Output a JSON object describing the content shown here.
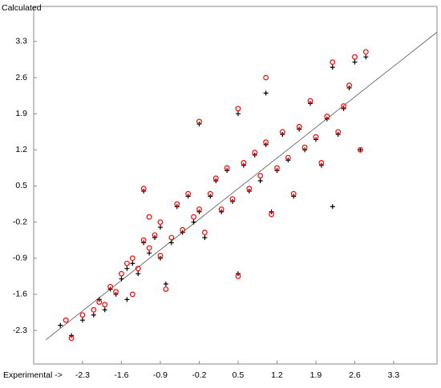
{
  "chart_data": {
    "type": "scatter",
    "y_label": "Calculated",
    "x_label": "Experimental ->",
    "xlim": [
      -3.18,
      4.08
    ],
    "ylim": [
      -2.95,
      3.98
    ],
    "xticks": [
      -2.3,
      -1.6,
      -0.9,
      -0.2,
      0.5,
      1.2,
      1.9,
      2.6,
      3.3
    ],
    "yticks": [
      -2.3,
      -1.6,
      -0.9,
      -0.2,
      0.5,
      1.2,
      1.9,
      2.6,
      3.3
    ],
    "fit_line": {
      "color": "#555555",
      "x": [
        -2.96,
        4.08
      ],
      "y": [
        -2.48,
        3.48
      ]
    },
    "series": [
      {
        "marker": "+",
        "color": "#000000",
        "x": [
          -2.7,
          -2.5,
          -2.3,
          -2.1,
          -2.0,
          -1.9,
          -1.8,
          -1.7,
          -1.6,
          -1.5,
          -1.5,
          -1.4,
          -1.3,
          -1.2,
          -1.2,
          -1.1,
          -1.0,
          -0.9,
          -0.9,
          -0.8,
          -0.7,
          -0.6,
          -0.5,
          -0.4,
          -0.3,
          -0.2,
          -0.2,
          -0.1,
          0.0,
          0.1,
          0.2,
          0.3,
          0.4,
          0.5,
          0.5,
          0.6,
          0.7,
          0.8,
          0.9,
          1.0,
          1.0,
          1.1,
          1.2,
          1.3,
          1.4,
          1.5,
          1.6,
          1.7,
          1.8,
          1.9,
          2.0,
          2.1,
          2.2,
          2.2,
          2.3,
          2.4,
          2.5,
          2.6,
          2.7,
          2.8
        ],
        "y": [
          -2.2,
          -2.4,
          -2.1,
          -2.0,
          -1.7,
          -1.9,
          -1.5,
          -1.6,
          -1.3,
          -1.1,
          -1.7,
          -1.0,
          -1.2,
          0.4,
          -0.6,
          -0.8,
          -0.5,
          -0.9,
          -0.3,
          -1.4,
          -0.6,
          0.1,
          -0.4,
          0.3,
          -0.2,
          0.0,
          1.7,
          -0.5,
          0.3,
          0.6,
          0.0,
          0.8,
          0.2,
          1.9,
          -1.2,
          0.9,
          0.4,
          1.1,
          0.6,
          2.3,
          1.3,
          0.0,
          0.8,
          1.5,
          1.0,
          0.3,
          1.6,
          1.2,
          2.1,
          1.4,
          0.9,
          1.8,
          2.8,
          0.1,
          1.5,
          2.0,
          2.4,
          2.9,
          1.2,
          3.0
        ]
      },
      {
        "marker": "o",
        "color": "#ff0000",
        "x": [
          -2.6,
          -2.5,
          -2.3,
          -2.1,
          -2.0,
          -1.9,
          -1.8,
          -1.7,
          -1.6,
          -1.5,
          -1.4,
          -1.4,
          -1.3,
          -1.2,
          -1.2,
          -1.1,
          -1.0,
          -0.9,
          -0.9,
          -0.8,
          -0.7,
          -0.6,
          -0.5,
          -0.4,
          -0.3,
          -0.2,
          -0.2,
          -0.1,
          0.0,
          0.1,
          0.2,
          0.3,
          0.4,
          0.5,
          0.5,
          0.6,
          0.7,
          0.8,
          0.9,
          1.0,
          1.0,
          1.1,
          1.2,
          1.3,
          1.4,
          1.5,
          1.6,
          1.7,
          1.8,
          1.9,
          2.0,
          2.1,
          2.2,
          2.3,
          2.4,
          2.5,
          2.6,
          2.7,
          2.8,
          -1.1
        ],
        "y": [
          -2.1,
          -2.45,
          -2.0,
          -1.9,
          -1.75,
          -1.8,
          -1.45,
          -1.55,
          -1.2,
          -1.0,
          -1.6,
          -0.9,
          -1.1,
          0.45,
          -0.55,
          -0.7,
          -0.45,
          -0.85,
          -0.2,
          -1.5,
          -0.5,
          0.15,
          -0.35,
          0.35,
          -0.1,
          0.05,
          1.75,
          -0.4,
          0.35,
          0.65,
          0.05,
          0.85,
          0.25,
          2.0,
          -1.25,
          0.95,
          0.45,
          1.15,
          0.7,
          2.6,
          1.35,
          -0.05,
          0.85,
          1.55,
          1.05,
          0.35,
          1.65,
          1.25,
          2.15,
          1.45,
          0.95,
          1.85,
          2.9,
          1.55,
          2.05,
          2.45,
          3.0,
          1.2,
          3.1,
          -0.1
        ]
      }
    ]
  }
}
